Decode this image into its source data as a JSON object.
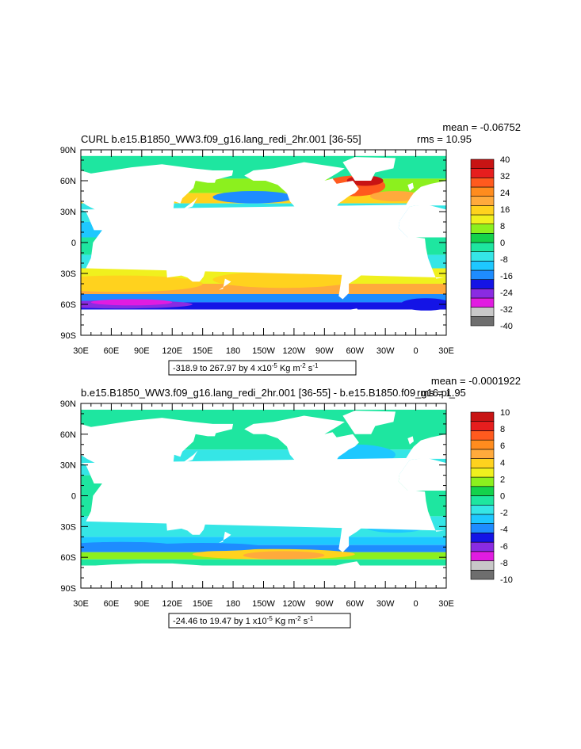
{
  "panels": [
    {
      "title": "CURL b.e15.B1850_WW3.f09_g16.lang_redi_2hr.001 [36-55]",
      "mean": "mean = -0.06752",
      "rms": "rms = 10.95",
      "range_text": "-318.9 to 267.97 by 4 x10",
      "exponent": "-5",
      "units_a": " Kg m",
      "units_exp": "-2",
      "units_b": " s",
      "units_exp2": "-1",
      "colorbar_labels": [
        "40",
        "32",
        "24",
        "16",
        "8",
        "0",
        "-8",
        "-16",
        "-24",
        "-32",
        "-40"
      ],
      "colorbar_colors": [
        "#6e6e6e",
        "#c8c8c8",
        "#e11ce1",
        "#8a2be2",
        "#1414e6",
        "#1e8cff",
        "#1ec8ff",
        "#35e6e6",
        "#1ee6a0",
        "#14d24b",
        "#8cf01e",
        "#f0f01e",
        "#ffd21e",
        "#ffaa3c",
        "#ff8c1e",
        "#ff5a1e",
        "#e61e1e",
        "#c81414"
      ]
    },
    {
      "title": "b.e15.B1850_WW3.f09_g16.lang_redi_2hr.001 [36-55] - b.e15.B1850.f09_g16.pi_",
      "mean": "mean = -0.0001922",
      "rms": "rms = 1.95",
      "range_text": "-24.46 to 19.47 by 1 x10",
      "exponent": "-5",
      "units_a": " Kg m",
      "units_exp": "-2",
      "units_b": " s",
      "units_exp2": "-1",
      "colorbar_labels": [
        "10",
        "8",
        "6",
        "4",
        "2",
        "0",
        "-2",
        "-4",
        "-6",
        "-8",
        "-10"
      ],
      "colorbar_colors": [
        "#6e6e6e",
        "#c8c8c8",
        "#e11ce1",
        "#8a2be2",
        "#1414e6",
        "#1e8cff",
        "#1ec8ff",
        "#35e6e6",
        "#1ee6a0",
        "#14d24b",
        "#8cf01e",
        "#f0f01e",
        "#ffd21e",
        "#ffaa3c",
        "#ff8c1e",
        "#ff5a1e",
        "#e61e1e",
        "#c81414"
      ]
    }
  ],
  "axes": {
    "lat_labels": [
      "90N",
      "60N",
      "30N",
      "0",
      "30S",
      "60S",
      "90S"
    ],
    "lon_labels": [
      "30E",
      "60E",
      "90E",
      "120E",
      "150E",
      "180",
      "150W",
      "120W",
      "90W",
      "60W",
      "30W",
      "0",
      "30E"
    ]
  },
  "colors": {
    "land": "#ffffff",
    "ocean_base_top": "#35e6e6",
    "ocean_base_bottom": "#35e6e6"
  }
}
